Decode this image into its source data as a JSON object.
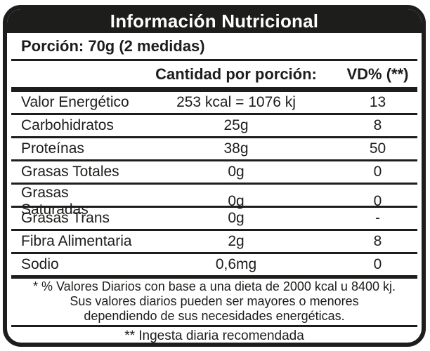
{
  "label": {
    "title": "Información Nutricional",
    "portion": "Porción: 70g (2 medidas)",
    "columns": {
      "amount": "Cantidad por porción:",
      "vd": "VD% (**)"
    },
    "rows": [
      {
        "name": "Valor Energético",
        "amount": "253 kcal = 1076 kj",
        "vd": "13"
      },
      {
        "name": "Carbohidratos",
        "amount": "25g",
        "vd": "8"
      },
      {
        "name": "Proteínas",
        "amount": "38g",
        "vd": "50"
      },
      {
        "name": "Grasas Totales",
        "amount": "0g",
        "vd": "0"
      },
      {
        "name": "Grasas Saturadas",
        "amount": "0g",
        "vd": "0"
      },
      {
        "name": "Grasas Trans",
        "amount": "0g",
        "vd": "-"
      },
      {
        "name": "Fibra Alimentaria",
        "amount": "2g",
        "vd": "8"
      },
      {
        "name": "Sodio",
        "amount": "0,6mg",
        "vd": "0"
      }
    ],
    "footnote_lines": [
      "* % Valores Diarios con base a una dieta de 2000 kcal u 8400 kj.",
      "Sus valores diarios pueden ser mayores o menores",
      "dependiendo de sus necesidades energéticas."
    ],
    "footnote2": "** Ingesta diaria recomendada",
    "colors": {
      "ink": "#1d1d1b",
      "background": "#ffffff",
      "header_text": "#ffffff"
    }
  }
}
